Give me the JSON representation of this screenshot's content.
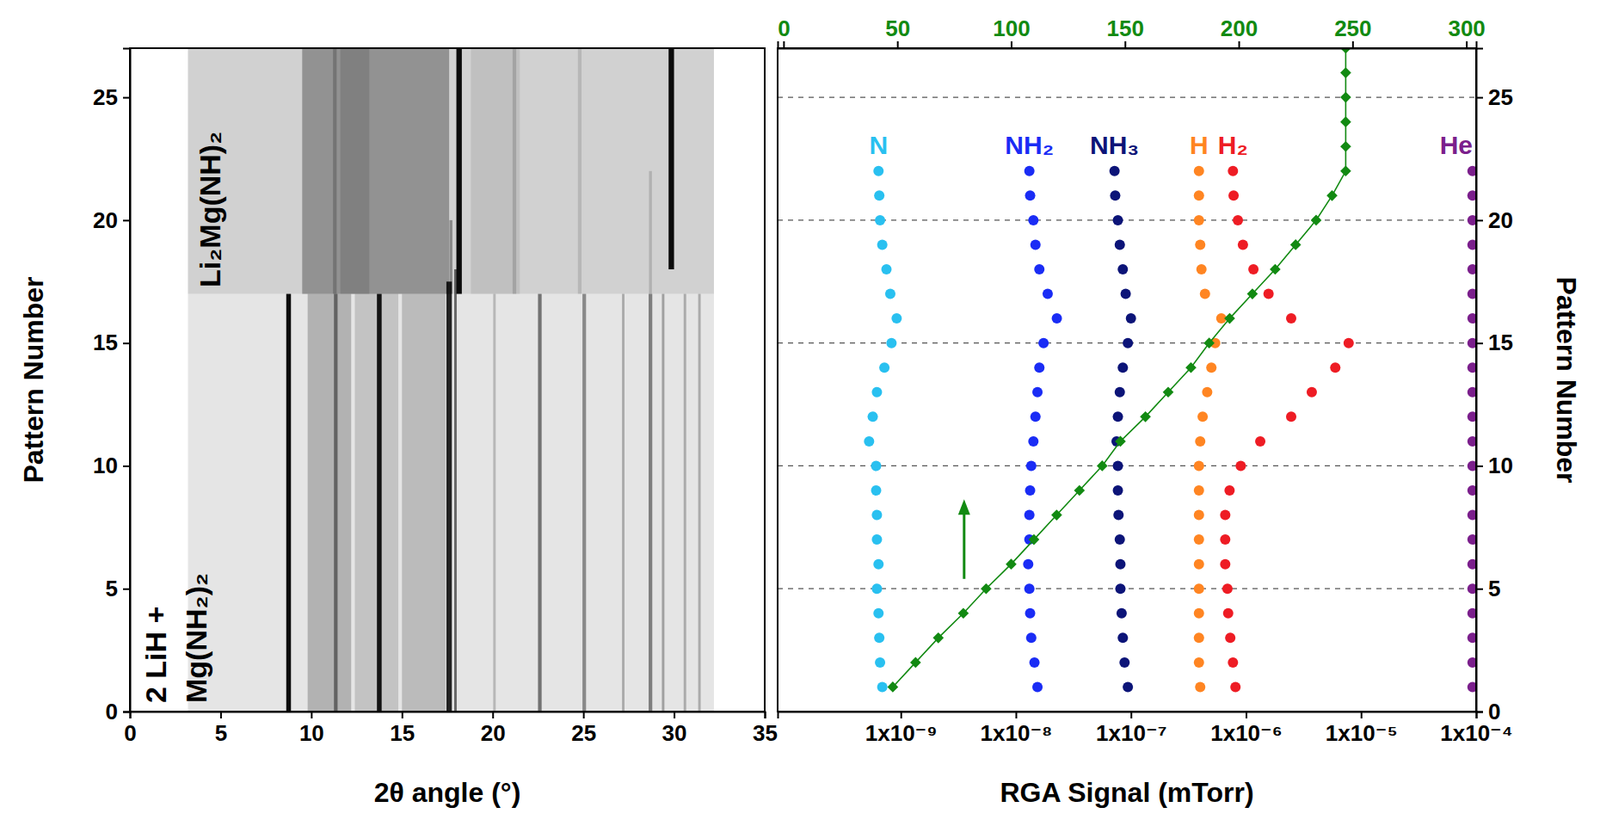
{
  "chart_data": [
    {
      "type": "heatmap",
      "x_label": "2θ angle (°)",
      "y_label": "Pattern Number",
      "xlim": [
        0,
        35
      ],
      "xticks": [
        0,
        5,
        10,
        15,
        20,
        25,
        30,
        35
      ],
      "ylim": [
        0,
        27
      ],
      "yticks": [
        0,
        5,
        10,
        15,
        20,
        25
      ],
      "color": "#000000",
      "annotations": [
        "2 LiH +",
        "Mg(NH₂)₂",
        "Li₂Mg(NH)₂"
      ],
      "cells": [
        {
          "x0": 3.2,
          "x1": 32.2,
          "y0": 0,
          "y1": 17,
          "value": 0.1
        },
        {
          "x0": 9.8,
          "x1": 12.2,
          "y0": 0,
          "y1": 17,
          "value": 0.22
        },
        {
          "x0": 12.4,
          "x1": 14.8,
          "y0": 0,
          "y1": 17,
          "value": 0.15
        },
        {
          "x0": 15.0,
          "x1": 17.4,
          "y0": 0,
          "y1": 17,
          "value": 0.18
        },
        {
          "x0": 3.2,
          "x1": 32.2,
          "y0": 17,
          "y1": 27,
          "value": 0.18
        },
        {
          "x0": 9.5,
          "x1": 17.6,
          "y0": 17,
          "y1": 27,
          "value": 0.3
        },
        {
          "x0": 11.6,
          "x1": 13.2,
          "y0": 17,
          "y1": 27,
          "value": 0.12
        },
        {
          "x0": 18.8,
          "x1": 21.5,
          "y0": 17,
          "y1": 27,
          "value": 0.08
        },
        {
          "x0": 8.62,
          "x1": 8.88,
          "y0": 0,
          "y1": 17,
          "value": 0.95
        },
        {
          "x0": 11.25,
          "x1": 11.45,
          "y0": 0,
          "y1": 17,
          "value": 0.45
        },
        {
          "x0": 13.62,
          "x1": 13.88,
          "y0": 0,
          "y1": 17,
          "value": 0.9
        },
        {
          "x0": 17.45,
          "x1": 17.75,
          "y0": 0,
          "y1": 17.5,
          "value": 0.85
        },
        {
          "x0": 17.88,
          "x1": 18.02,
          "y0": 0,
          "y1": 18,
          "value": 0.55
        },
        {
          "x0": 20.03,
          "x1": 20.17,
          "y0": 0,
          "y1": 17,
          "value": 0.2
        },
        {
          "x0": 22.5,
          "x1": 22.7,
          "y0": 0,
          "y1": 17,
          "value": 0.5
        },
        {
          "x0": 24.95,
          "x1": 25.15,
          "y0": 0,
          "y1": 17,
          "value": 0.4
        },
        {
          "x0": 27.13,
          "x1": 27.27,
          "y0": 0,
          "y1": 17,
          "value": 0.25
        },
        {
          "x0": 28.6,
          "x1": 28.8,
          "y0": 0,
          "y1": 17,
          "value": 0.45
        },
        {
          "x0": 29.33,
          "x1": 29.47,
          "y0": 0,
          "y1": 17,
          "value": 0.3
        },
        {
          "x0": 30.53,
          "x1": 30.67,
          "y0": 0,
          "y1": 17,
          "value": 0.25
        },
        {
          "x0": 31.33,
          "x1": 31.47,
          "y0": 0,
          "y1": 17,
          "value": 0.25
        },
        {
          "x0": 18.0,
          "x1": 18.3,
          "y0": 17,
          "y1": 27,
          "value": 0.95
        },
        {
          "x0": 29.7,
          "x1": 30.0,
          "y0": 18,
          "y1": 27,
          "value": 0.95
        },
        {
          "x0": 11.2,
          "x1": 11.4,
          "y0": 17,
          "y1": 27,
          "value": 0.2
        },
        {
          "x0": 21.1,
          "x1": 21.3,
          "y0": 17,
          "y1": 27,
          "value": 0.15
        },
        {
          "x0": 24.7,
          "x1": 24.9,
          "y0": 17,
          "y1": 27,
          "value": 0.12
        },
        {
          "x0": 28.62,
          "x1": 28.78,
          "y0": 17,
          "y1": 22,
          "value": 0.15
        },
        {
          "x0": 17.62,
          "x1": 17.78,
          "y0": 17,
          "y1": 20,
          "value": 0.35
        }
      ]
    },
    {
      "type": "scatter",
      "x_label": "RGA Signal (mTorr)",
      "y_label": "Pattern Number",
      "log": "x",
      "grid": true,
      "xlim": [
        8.5e-11,
        0.0001
      ],
      "xticks": [
        {
          "value": 1e-09,
          "label": "1x10⁻⁹"
        },
        {
          "value": 1e-08,
          "label": "1x10⁻⁸"
        },
        {
          "value": 1e-07,
          "label": "1x10⁻⁷"
        },
        {
          "value": 1e-06,
          "label": "1x10⁻⁶"
        },
        {
          "value": 1e-05,
          "label": "1x10⁻⁵"
        },
        {
          "value": 0.0001,
          "label": "1x10⁻⁴"
        }
      ],
      "x2lim": [
        -2.6,
        304.3
      ],
      "x2ticks": [
        0,
        50,
        100,
        150,
        200,
        250,
        300
      ],
      "ylim": [
        0,
        27
      ],
      "yticks": [
        0,
        5,
        10,
        15,
        20,
        25
      ],
      "series": [
        {
          "name": "N",
          "color": "#29c0f0",
          "marker": "circle",
          "x": [
            6.9e-10,
            6.6e-10,
            6.5e-10,
            6.4e-10,
            6.2e-10,
            6.4e-10,
            6.2e-10,
            6.2e-10,
            6.1e-10,
            6.1e-10,
            5.3e-10,
            5.7e-10,
            6.2e-10,
            7.2e-10,
            8.3e-10,
            9.2e-10,
            8.1e-10,
            7.5e-10,
            6.9e-10,
            6.6e-10,
            6.5e-10,
            6.4e-10
          ],
          "y": [
            1,
            2,
            3,
            4,
            5,
            6,
            7,
            8,
            9,
            10,
            11,
            12,
            13,
            14,
            15,
            16,
            17,
            18,
            19,
            20,
            21,
            22
          ]
        },
        {
          "name": "NH₂",
          "color": "#1a2cf5",
          "marker": "circle",
          "x": [
            1.54e-08,
            1.45e-08,
            1.36e-08,
            1.33e-08,
            1.31e-08,
            1.28e-08,
            1.31e-08,
            1.31e-08,
            1.33e-08,
            1.36e-08,
            1.42e-08,
            1.48e-08,
            1.54e-08,
            1.6e-08,
            1.74e-08,
            2.27e-08,
            1.89e-08,
            1.6e-08,
            1.48e-08,
            1.42e-08,
            1.33e-08,
            1.31e-08
          ],
          "y": [
            1,
            2,
            3,
            4,
            5,
            6,
            7,
            8,
            9,
            10,
            11,
            12,
            13,
            14,
            15,
            16,
            17,
            18,
            19,
            20,
            21,
            22
          ]
        },
        {
          "name": "NH₃",
          "color": "#0c1478",
          "marker": "circle",
          "x": [
            9.4e-08,
            8.8e-08,
            8.5e-08,
            8.3e-08,
            8.1e-08,
            8.1e-08,
            8e-08,
            7.8e-08,
            7.7e-08,
            7.7e-08,
            7.5e-08,
            7.7e-08,
            8e-08,
            8.5e-08,
            9.4e-08,
            1e-07,
            9e-08,
            8.5e-08,
            8e-08,
            7.7e-08,
            7.3e-08,
            7.2e-08
          ],
          "y": [
            1,
            2,
            3,
            4,
            5,
            6,
            7,
            8,
            9,
            10,
            11,
            12,
            13,
            14,
            15,
            16,
            17,
            18,
            19,
            20,
            21,
            22
          ]
        },
        {
          "name": "H",
          "color": "#ff8522",
          "marker": "circle",
          "x": [
            4e-07,
            3.9e-07,
            3.9e-07,
            3.9e-07,
            3.9e-07,
            3.9e-07,
            3.9e-07,
            3.9e-07,
            3.9e-07,
            3.9e-07,
            4e-07,
            4.2e-07,
            4.6e-07,
            5e-07,
            5.4e-07,
            6.1e-07,
            4.4e-07,
            4.1e-07,
            4e-07,
            3.9e-07,
            3.9e-07,
            3.9e-07
          ],
          "y": [
            1,
            2,
            3,
            4,
            5,
            6,
            7,
            8,
            9,
            10,
            11,
            12,
            13,
            14,
            15,
            16,
            17,
            18,
            19,
            20,
            21,
            22
          ]
        },
        {
          "name": "H₂",
          "color": "#ee1c24",
          "marker": "circle",
          "x": [
            8.1e-07,
            7.7e-07,
            7.3e-07,
            7e-07,
            6.9e-07,
            6.6e-07,
            6.6e-07,
            6.6e-07,
            7.2e-07,
            9e-07,
            1.33e-06,
            2.47e-06,
            3.73e-06,
            5.97e-06,
            7.8e-06,
            2.47e-06,
            1.57e-06,
            1.16e-06,
            9.4e-07,
            8.5e-07,
            7.8e-07,
            7.7e-07
          ],
          "y": [
            1,
            2,
            3,
            4,
            5,
            6,
            7,
            8,
            9,
            10,
            11,
            12,
            13,
            14,
            15,
            16,
            17,
            18,
            19,
            20,
            21,
            22
          ]
        },
        {
          "name": "He",
          "color": "#7b1f8c",
          "marker": "circle",
          "x": [
            9.3e-05,
            9.3e-05,
            9.3e-05,
            9.3e-05,
            9.3e-05,
            9.3e-05,
            9.3e-05,
            9.3e-05,
            9.3e-05,
            9.3e-05,
            9.3e-05,
            9.3e-05,
            9.3e-05,
            9.3e-05,
            9.3e-05,
            9.3e-05,
            9.3e-05,
            9.3e-05,
            9.3e-05,
            9.3e-05,
            9.3e-05,
            9.3e-05
          ],
          "y": [
            1,
            2,
            3,
            4,
            5,
            6,
            7,
            8,
            9,
            10,
            11,
            12,
            13,
            14,
            15,
            16,
            17,
            18,
            19,
            20,
            21,
            22
          ]
        },
        {
          "color": "#128a12",
          "marker": "diamond",
          "line_style": "solid",
          "axis": "x2",
          "x": [
            48,
            58,
            68,
            79,
            89,
            100,
            110,
            120,
            130,
            140,
            148,
            159,
            169,
            179,
            187,
            196,
            206,
            216,
            225,
            234,
            241,
            247,
            247,
            247,
            247,
            247,
            247
          ],
          "y": [
            1,
            2,
            3,
            4,
            5,
            6,
            7,
            8,
            9,
            10,
            11,
            12,
            13,
            14,
            15,
            16,
            17,
            18,
            19,
            20,
            21,
            22,
            23,
            24,
            25,
            26,
            27
          ]
        }
      ]
    }
  ]
}
